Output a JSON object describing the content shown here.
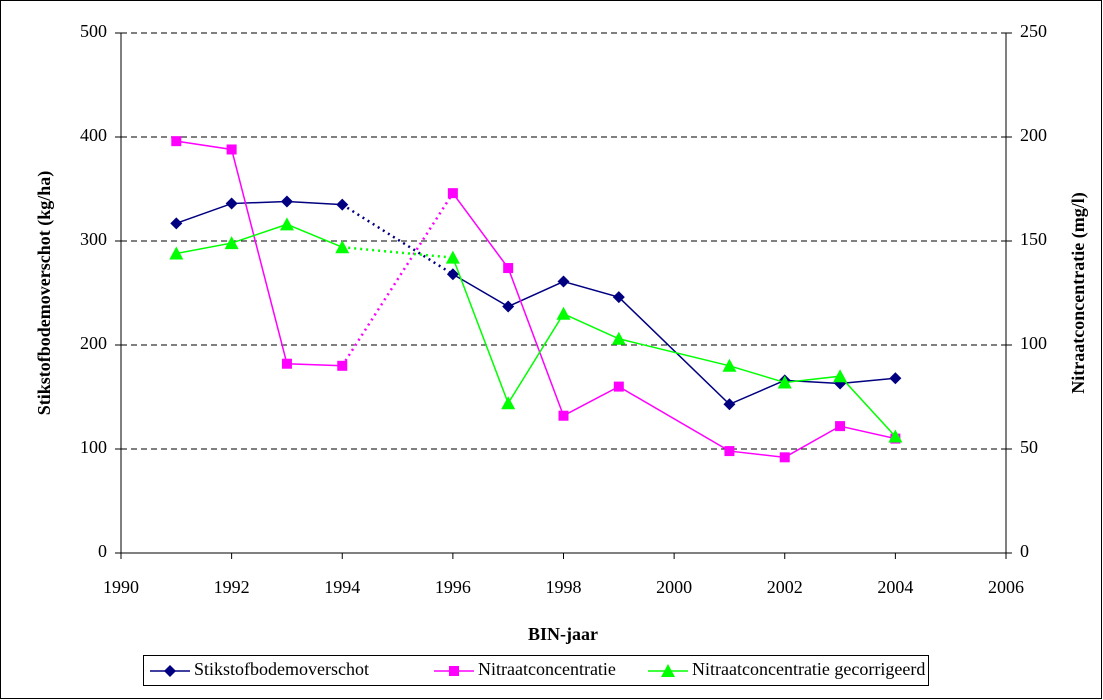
{
  "chart_data": {
    "type": "line",
    "x_label": "BIN-jaar",
    "y_label": "Stikstofbodemoverschot (kg/ha)",
    "y2_label": "Nitraatconcentratie (mg/l)",
    "x": [
      1991,
      1992,
      1993,
      1994,
      1996,
      1997,
      1998,
      1999,
      2001,
      2002,
      2003,
      2004
    ],
    "dotted_x": [
      1994,
      1996
    ],
    "series": [
      {
        "name": "Stikstofbodemoverschot",
        "color": "#000080",
        "marker": "diamond",
        "values": [
          317,
          336,
          338,
          335,
          268,
          237,
          261,
          246,
          143,
          166,
          163,
          168
        ]
      },
      {
        "name": "Nitraatconcentratie",
        "color": "#ff00ff",
        "marker": "square",
        "axis": "y2",
        "values": [
          198,
          194,
          91,
          90,
          173,
          137,
          66,
          80,
          49,
          46,
          61,
          55
        ]
      },
      {
        "name": "Nitraatconcentratie gecorrigeerd",
        "color": "#00ff00",
        "marker": "triangle",
        "axis": "y2",
        "values": [
          144,
          149,
          158,
          147,
          142,
          72,
          115,
          103,
          90,
          82,
          85,
          56
        ]
      }
    ],
    "xlim": [
      1990,
      2006
    ],
    "xticks": [
      1990,
      1992,
      1994,
      1996,
      1998,
      2000,
      2002,
      2004,
      2006
    ],
    "ylim": [
      0,
      500
    ],
    "yticks": [
      0,
      100,
      200,
      300,
      400,
      500
    ],
    "y2lim": [
      0,
      250
    ],
    "y2ticks": [
      0,
      50,
      100,
      150,
      200,
      250
    ],
    "grid": true,
    "legend": "bottom"
  }
}
